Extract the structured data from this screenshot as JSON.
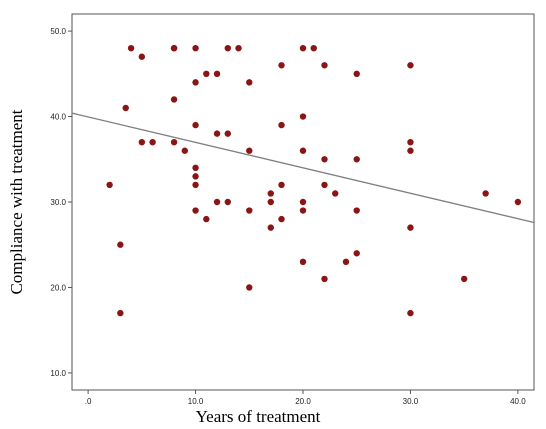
{
  "chart_data": {
    "type": "scatter",
    "title": "",
    "xlabel": "Years of treatment",
    "ylabel": "Compliance with treatment",
    "xlim": [
      -1.5,
      41.5
    ],
    "ylim": [
      8.0,
      52.0
    ],
    "x_ticks": [
      0,
      10,
      20,
      30,
      40
    ],
    "x_tick_labels": [
      ".0",
      "10.0",
      "20.0",
      "30.0",
      "40.0"
    ],
    "y_ticks": [
      10,
      20,
      30,
      40,
      50
    ],
    "y_tick_labels": [
      "10.0",
      "20.0",
      "30.0",
      "40.0",
      "50.0"
    ],
    "grid": false,
    "point_color": "#8b1414",
    "fit_line_color": "#7f7f7f",
    "fit_line": {
      "x": [
        -1.5,
        41.5
      ],
      "y": [
        40.4,
        27.6
      ]
    },
    "points": [
      {
        "x": 2,
        "y": 32
      },
      {
        "x": 3,
        "y": 25
      },
      {
        "x": 3,
        "y": 17
      },
      {
        "x": 3.5,
        "y": 41
      },
      {
        "x": 4,
        "y": 48
      },
      {
        "x": 5,
        "y": 47
      },
      {
        "x": 5,
        "y": 37
      },
      {
        "x": 6,
        "y": 37
      },
      {
        "x": 8,
        "y": 48
      },
      {
        "x": 8,
        "y": 48
      },
      {
        "x": 8,
        "y": 42
      },
      {
        "x": 8,
        "y": 37
      },
      {
        "x": 9,
        "y": 36
      },
      {
        "x": 10,
        "y": 48
      },
      {
        "x": 10,
        "y": 44
      },
      {
        "x": 10,
        "y": 39
      },
      {
        "x": 10,
        "y": 34
      },
      {
        "x": 10,
        "y": 33
      },
      {
        "x": 10,
        "y": 32
      },
      {
        "x": 10,
        "y": 29
      },
      {
        "x": 11,
        "y": 45
      },
      {
        "x": 11,
        "y": 28
      },
      {
        "x": 12,
        "y": 45
      },
      {
        "x": 12,
        "y": 38
      },
      {
        "x": 12,
        "y": 30
      },
      {
        "x": 13,
        "y": 48
      },
      {
        "x": 13,
        "y": 38
      },
      {
        "x": 13,
        "y": 30
      },
      {
        "x": 14,
        "y": 48
      },
      {
        "x": 15,
        "y": 44
      },
      {
        "x": 15,
        "y": 36
      },
      {
        "x": 15,
        "y": 29
      },
      {
        "x": 15,
        "y": 20
      },
      {
        "x": 17,
        "y": 31
      },
      {
        "x": 17,
        "y": 30
      },
      {
        "x": 17,
        "y": 27
      },
      {
        "x": 18,
        "y": 46
      },
      {
        "x": 18,
        "y": 39
      },
      {
        "x": 18,
        "y": 32
      },
      {
        "x": 18,
        "y": 28
      },
      {
        "x": 20,
        "y": 48
      },
      {
        "x": 20,
        "y": 40
      },
      {
        "x": 20,
        "y": 36
      },
      {
        "x": 20,
        "y": 30
      },
      {
        "x": 20,
        "y": 29
      },
      {
        "x": 20,
        "y": 23
      },
      {
        "x": 21,
        "y": 48
      },
      {
        "x": 22,
        "y": 46
      },
      {
        "x": 22,
        "y": 35
      },
      {
        "x": 22,
        "y": 32
      },
      {
        "x": 22,
        "y": 21
      },
      {
        "x": 23,
        "y": 31
      },
      {
        "x": 24,
        "y": 23
      },
      {
        "x": 25,
        "y": 45
      },
      {
        "x": 25,
        "y": 35
      },
      {
        "x": 25,
        "y": 29
      },
      {
        "x": 25,
        "y": 24
      },
      {
        "x": 30,
        "y": 46
      },
      {
        "x": 30,
        "y": 37
      },
      {
        "x": 30,
        "y": 36
      },
      {
        "x": 30,
        "y": 27
      },
      {
        "x": 30,
        "y": 17
      },
      {
        "x": 35,
        "y": 21
      },
      {
        "x": 37,
        "y": 31
      },
      {
        "x": 40,
        "y": 30
      }
    ]
  }
}
